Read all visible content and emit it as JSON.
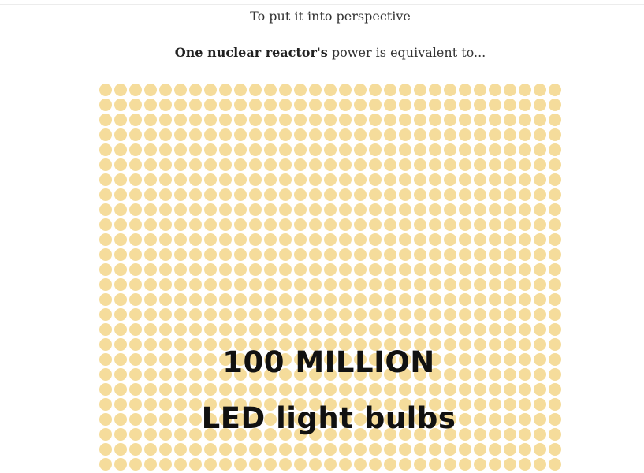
{
  "intro_text": "To put it into perspective",
  "equivalence": {
    "strong": "One nuclear reactor's",
    "rest": " power is equivalent to..."
  },
  "headline": {
    "line1": "100 MILLION",
    "line2": "LED light bulbs"
  },
  "colors": {
    "dot": "#f5dc9b",
    "text": "#333333",
    "headline": "#111111"
  }
}
